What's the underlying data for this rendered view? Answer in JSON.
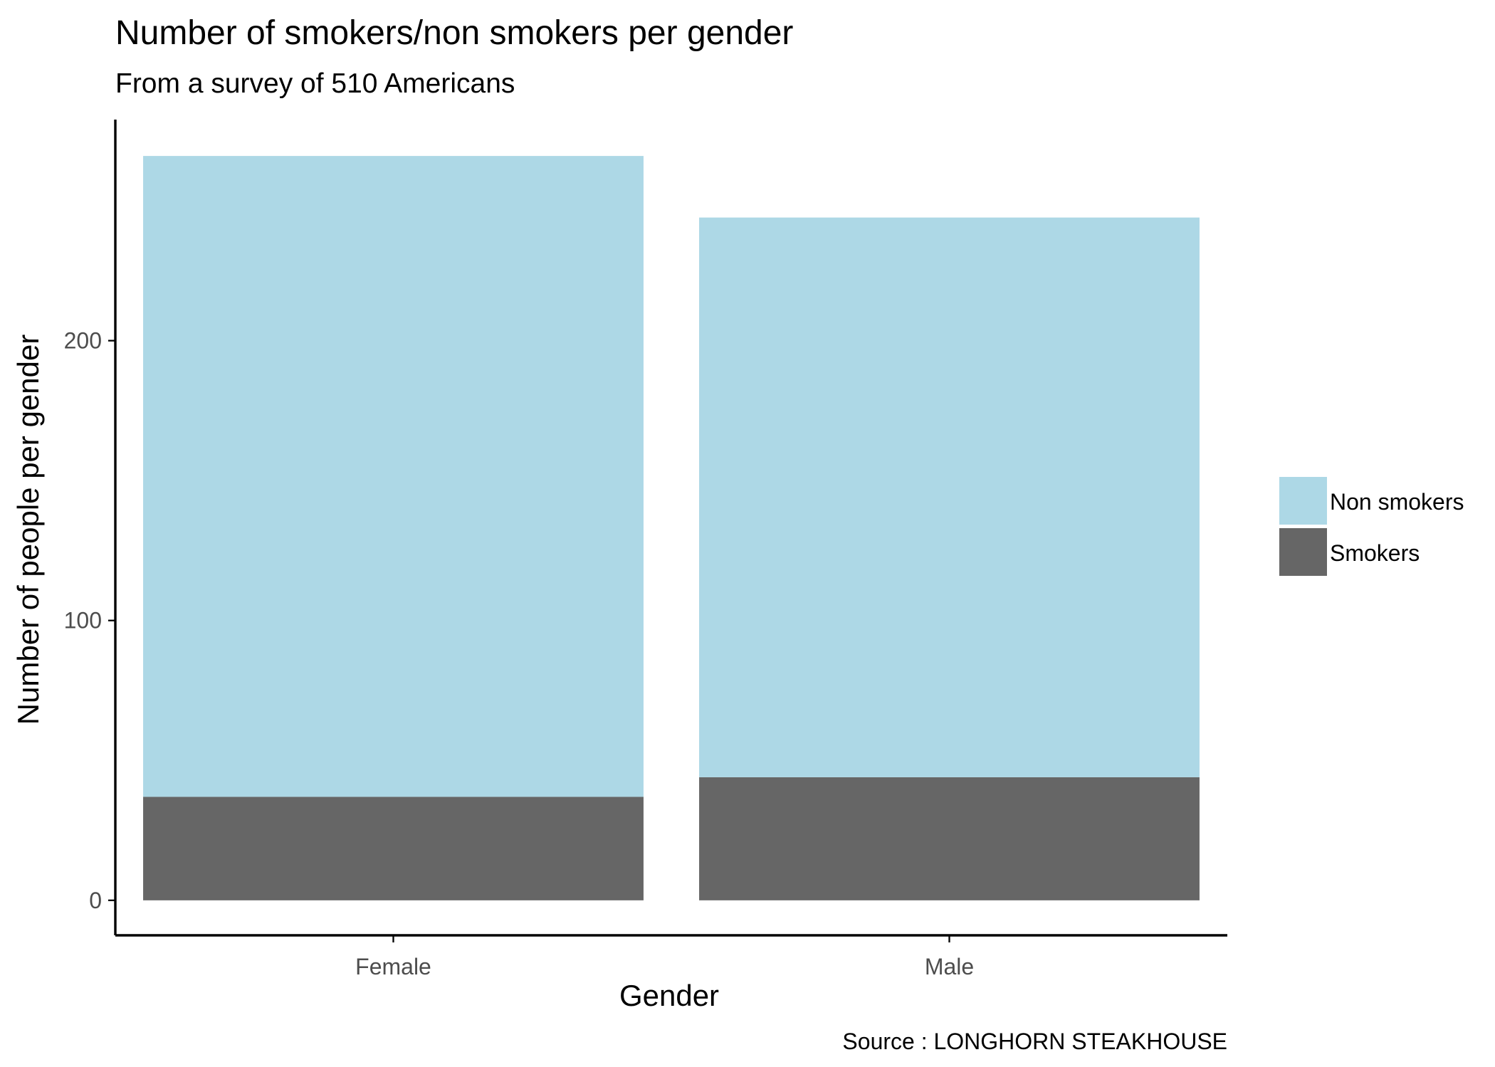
{
  "chart_data": {
    "type": "bar",
    "stacked": true,
    "title": "Number of smokers/non smokers per gender",
    "subtitle": "From a survey of 510 Americans",
    "xlabel": "Gender",
    "ylabel": "Number of people per gender",
    "caption": "Source : LONGHORN STEAKHOUSE",
    "categories": [
      "Female",
      "Male"
    ],
    "series": [
      {
        "name": "Smokers",
        "color": "#666666",
        "values": [
          37,
          44
        ]
      },
      {
        "name": "Non smokers",
        "color": "#add8e6",
        "values": [
          229,
          200
        ]
      }
    ],
    "legend_order": [
      "Non smokers",
      "Smokers"
    ],
    "yticks": [
      0,
      100,
      200
    ],
    "ylim": [
      -12.5,
      279
    ],
    "grid": false,
    "legend_position": "right"
  }
}
